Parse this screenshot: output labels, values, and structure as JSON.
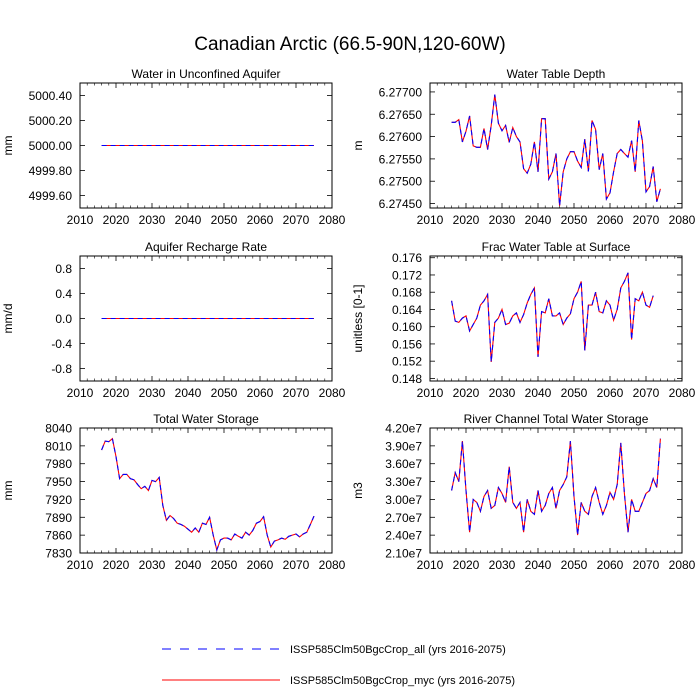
{
  "figure": {
    "title": "Canadian Arctic (66.5-90N,120-60W)"
  },
  "legend": {
    "entries": [
      {
        "label": "ISSP585Clm50BgcCrop_all (yrs 2016-2075)",
        "color": "#0000ff",
        "dash": "dashed"
      },
      {
        "label": "ISSP585Clm50BgcCrop_myc (yrs 2016-2075)",
        "color": "#ff0000",
        "dash": "solid"
      }
    ]
  },
  "chart_data": [
    {
      "type": "line",
      "title": "Water in Unconfined Aquifer",
      "ylabel": "mm",
      "xlim": [
        2010,
        2080
      ],
      "xticks": [
        2010,
        2020,
        2030,
        2040,
        2050,
        2060,
        2070,
        2080
      ],
      "ylim": [
        4999.5,
        5000.5
      ],
      "yticks": [
        4999.6,
        4999.8,
        5000.0,
        5000.2,
        5000.4
      ],
      "ytick_labels": [
        "4999.60",
        "4999.80",
        "5000.00",
        "5000.20",
        "5000.40"
      ],
      "x_range": [
        2016,
        2075
      ],
      "series": [
        {
          "constant": 5000.0
        }
      ]
    },
    {
      "type": "line",
      "title": "Water Table Depth",
      "ylabel": "m",
      "xlim": [
        2010,
        2080
      ],
      "xticks": [
        2010,
        2020,
        2030,
        2040,
        2050,
        2060,
        2070,
        2080
      ],
      "ylim": [
        6.2744,
        6.2772
      ],
      "yticks": [
        6.2745,
        6.275,
        6.2755,
        6.276,
        6.2765,
        6.277
      ],
      "ytick_labels": [
        "6.27450",
        "6.27500",
        "6.27550",
        "6.27600",
        "6.27650",
        "6.27700"
      ],
      "x_start": 2016,
      "series": [
        {
          "values": [
            6.27632,
            6.27632,
            6.27638,
            6.27588,
            6.27612,
            6.27646,
            6.27579,
            6.27576,
            6.27576,
            6.27618,
            6.27571,
            6.27625,
            6.27694,
            6.2763,
            6.27613,
            6.27625,
            6.27587,
            6.2762,
            6.276,
            6.27588,
            6.27528,
            6.27518,
            6.27538,
            6.27588,
            6.27521,
            6.2764,
            6.2764,
            6.27505,
            6.27521,
            6.27562,
            6.27445,
            6.27521,
            6.2755,
            6.27566,
            6.27566,
            6.27545,
            6.27531,
            6.27594,
            6.27522,
            6.27636,
            6.27616,
            6.27526,
            6.27562,
            6.2746,
            6.27474,
            6.27521,
            6.27562,
            6.27571,
            6.27562,
            6.27554,
            6.27591,
            6.27521,
            6.27636,
            6.2759,
            6.27476,
            6.27488,
            6.27533,
            6.27454,
            6.27483
          ]
        }
      ]
    },
    {
      "type": "line",
      "title": "Aquifer Recharge Rate",
      "ylabel": "mm/d",
      "xlim": [
        2010,
        2080
      ],
      "xticks": [
        2010,
        2020,
        2030,
        2040,
        2050,
        2060,
        2070,
        2080
      ],
      "ylim": [
        -1.0,
        1.0
      ],
      "yticks": [
        -0.8,
        -0.4,
        0.0,
        0.4,
        0.8
      ],
      "ytick_labels": [
        "-0.8",
        "-0.4",
        "0.0",
        "0.4",
        "0.8"
      ],
      "x_range": [
        2016,
        2075
      ],
      "series": [
        {
          "constant": 0.0
        }
      ]
    },
    {
      "type": "line",
      "title": "Frac Water Table at Surface",
      "ylabel": "unitless [0-1]",
      "xlim": [
        2010,
        2080
      ],
      "xticks": [
        2010,
        2020,
        2030,
        2040,
        2050,
        2060,
        2070,
        2080
      ],
      "ylim": [
        0.1474,
        0.1764
      ],
      "yticks": [
        0.148,
        0.152,
        0.156,
        0.16,
        0.164,
        0.168,
        0.172,
        0.176
      ],
      "ytick_labels": [
        "0.148",
        "0.152",
        "0.156",
        "0.160",
        "0.164",
        "0.168",
        "0.172",
        "0.176"
      ],
      "x_start": 2016,
      "series": [
        {
          "values": [
            0.166,
            0.1613,
            0.161,
            0.162,
            0.1625,
            0.159,
            0.1605,
            0.162,
            0.165,
            0.166,
            0.1675,
            0.1518,
            0.161,
            0.162,
            0.164,
            0.1605,
            0.1608,
            0.1625,
            0.1632,
            0.161,
            0.1628,
            0.1655,
            0.1675,
            0.169,
            0.153,
            0.1635,
            0.1632,
            0.1665,
            0.1625,
            0.1625,
            0.1632,
            0.1605,
            0.162,
            0.163,
            0.1665,
            0.168,
            0.1705,
            0.1545,
            0.165,
            0.165,
            0.168,
            0.1635,
            0.1632,
            0.166,
            0.165,
            0.1615,
            0.164,
            0.169,
            0.1705,
            0.1725,
            0.157,
            0.1665,
            0.166,
            0.168,
            0.165,
            0.1645,
            0.1672
          ]
        }
      ]
    },
    {
      "type": "line",
      "title": "Total Water Storage",
      "ylabel": "mm",
      "xlim": [
        2010,
        2080
      ],
      "xticks": [
        2010,
        2020,
        2030,
        2040,
        2050,
        2060,
        2070,
        2080
      ],
      "ylim": [
        7830,
        8040
      ],
      "yticks": [
        7830,
        7860,
        7890,
        7920,
        7950,
        7980,
        8010,
        8040
      ],
      "ytick_labels": [
        "7830",
        "7860",
        "7890",
        "7920",
        "7950",
        "7980",
        "8010",
        "8040"
      ],
      "x_start": 2016,
      "series": [
        {
          "values": [
            8003,
            8018,
            8017,
            8022,
            7992,
            7955,
            7962,
            7962,
            7955,
            7953,
            7945,
            7938,
            7942,
            7935,
            7952,
            7950,
            7957,
            7910,
            7885,
            7893,
            7888,
            7880,
            7878,
            7875,
            7870,
            7865,
            7872,
            7865,
            7880,
            7878,
            7890,
            7860,
            7835,
            7852,
            7855,
            7855,
            7852,
            7862,
            7858,
            7855,
            7865,
            7860,
            7868,
            7880,
            7883,
            7891,
            7860,
            7840,
            7850,
            7852,
            7855,
            7853,
            7858,
            7860,
            7862,
            7857,
            7862,
            7865,
            7878,
            7892
          ]
        }
      ]
    },
    {
      "type": "line",
      "title": "River Channel Total Water Storage",
      "ylabel": "m3",
      "xlim": [
        2010,
        2080
      ],
      "xticks": [
        2010,
        2020,
        2030,
        2040,
        2050,
        2060,
        2070,
        2080
      ],
      "ylim": [
        21000000.0,
        42000000.0
      ],
      "yticks": [
        21000000.0,
        24000000.0,
        27000000.0,
        30000000.0,
        33000000.0,
        36000000.0,
        39000000.0,
        42000000.0
      ],
      "ytick_labels": [
        "2.10e7",
        "2.40e7",
        "2.70e7",
        "3.00e7",
        "3.30e7",
        "3.60e7",
        "3.90e7",
        "4.20e7"
      ],
      "x_start": 2016,
      "series": [
        {
          "values": [
            31500000.0,
            34500000.0,
            33000000.0,
            39800000.0,
            31500000.0,
            24500000.0,
            30000000.0,
            29500000.0,
            28000000.0,
            30500000.0,
            31500000.0,
            28500000.0,
            29000000.0,
            32000000.0,
            31000000.0,
            29500000.0,
            35500000.0,
            29500000.0,
            28500000.0,
            29500000.0,
            24500000.0,
            30000000.0,
            28000000.0,
            27500000.0,
            31500000.0,
            28000000.0,
            29000000.0,
            31000000.0,
            32000000.0,
            28500000.0,
            31500000.0,
            32500000.0,
            33800000.0,
            39800000.0,
            30500000.0,
            24000000.0,
            29500000.0,
            28000000.0,
            27500000.0,
            30500000.0,
            32000000.0,
            29500000.0,
            27500000.0,
            29000000.0,
            31200000.0,
            30000000.0,
            32500000.0,
            39500000.0,
            31000000.0,
            24500000.0,
            30000000.0,
            28000000.0,
            28000000.0,
            29500000.0,
            31000000.0,
            31500000.0,
            33500000.0,
            32000000.0,
            40200000.0
          ]
        }
      ]
    }
  ]
}
